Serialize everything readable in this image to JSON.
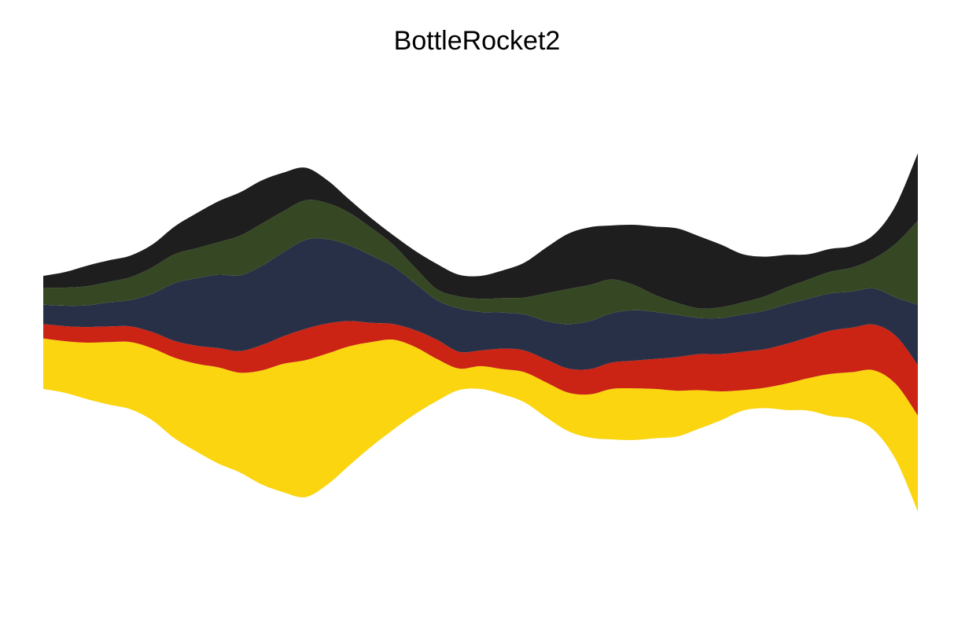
{
  "chart_data": {
    "type": "area",
    "subtype": "streamgraph",
    "title": "BottleRocket2",
    "xlabel": "",
    "ylabel": "",
    "axes_visible": false,
    "grid": false,
    "legend": "none",
    "x": [
      0,
      1,
      2,
      3,
      4,
      5,
      6,
      7,
      8,
      9,
      10,
      11,
      12,
      13,
      14,
      15,
      16,
      17,
      18,
      19,
      20,
      21,
      22,
      23,
      24,
      25,
      26,
      27,
      28,
      29,
      30,
      31,
      32,
      33,
      34,
      35,
      36,
      37,
      38,
      39,
      40
    ],
    "series": [
      {
        "color": "#FAD510",
        "values": [
          4.2,
          4.3,
          4.7,
          5.2,
          5.6,
          6.0,
          6.7,
          7.3,
          8.0,
          8.3,
          9.5,
          10.7,
          11.4,
          10.9,
          9.9,
          8.7,
          7.5,
          5.6,
          3.5,
          1.8,
          1.9,
          2.1,
          2.5,
          2.9,
          3.2,
          3.6,
          4.2,
          4.3,
          4.1,
          3.8,
          3.2,
          2.4,
          1.7,
          1.7,
          2.2,
          2.7,
          3.5,
          3.9,
          5.0,
          6.3,
          8.0
        ]
      },
      {
        "color": "#CB2314",
        "values": [
          1.2,
          1.25,
          1.3,
          1.3,
          1.3,
          1.35,
          1.4,
          1.5,
          1.6,
          1.8,
          2.1,
          2.3,
          2.6,
          2.5,
          2.1,
          1.6,
          1.3,
          1.4,
          1.6,
          1.4,
          1.3,
          1.7,
          1.8,
          1.9,
          2.0,
          2.1,
          2.2,
          2.3,
          2.5,
          2.8,
          3.0,
          3.1,
          3.2,
          3.2,
          3.3,
          3.4,
          3.6,
          3.7,
          3.8,
          4.0,
          4.2
        ]
      },
      {
        "color": "#273046",
        "values": [
          1.6,
          1.7,
          1.8,
          2.0,
          2.2,
          3.2,
          4.8,
          5.6,
          6.1,
          6.3,
          6.6,
          7.0,
          7.4,
          7.0,
          6.3,
          5.6,
          4.8,
          3.9,
          3.3,
          3.6,
          3.2,
          3.0,
          3.0,
          3.2,
          3.7,
          4.0,
          4.1,
          4.2,
          3.9,
          3.5,
          3.0,
          3.0,
          3.1,
          3.2,
          3.3,
          3.2,
          3.1,
          3.0,
          3.0,
          3.2,
          5.0
        ]
      },
      {
        "color": "#354823",
        "values": [
          1.4,
          1.5,
          1.6,
          1.7,
          1.9,
          2.2,
          2.4,
          2.5,
          2.7,
          3.3,
          3.5,
          3.4,
          3.3,
          3.0,
          2.7,
          2.3,
          1.8,
          1.3,
          0.9,
          1.0,
          1.1,
          1.2,
          1.4,
          2.3,
          2.9,
          3.0,
          2.8,
          2.1,
          1.4,
          1.0,
          0.8,
          0.9,
          1.0,
          1.2,
          1.4,
          1.6,
          1.8,
          2.0,
          2.5,
          4.5,
          7.0
        ]
      },
      {
        "color": "#1E1E1E",
        "values": [
          1.0,
          1.3,
          1.7,
          1.8,
          1.8,
          1.9,
          2.3,
          2.9,
          3.4,
          3.6,
          3.6,
          3.2,
          2.7,
          1.9,
          1.1,
          0.8,
          0.8,
          1.4,
          2.1,
          1.8,
          1.9,
          2.3,
          2.9,
          3.8,
          4.6,
          4.8,
          4.5,
          5.0,
          5.7,
          6.2,
          6.0,
          5.2,
          4.0,
          3.3,
          2.7,
          2.1,
          1.9,
          1.8,
          2.0,
          3.2,
          5.6
        ]
      }
    ]
  }
}
